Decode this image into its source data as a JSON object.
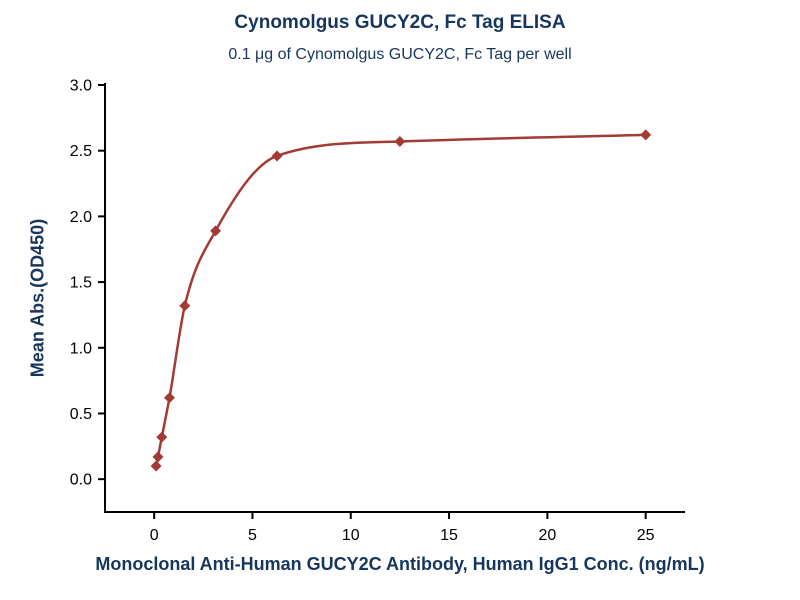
{
  "chart_data": {
    "type": "scatter",
    "title": "Cynomolgus GUCY2C, Fc Tag ELISA",
    "subtitle": "0.1 μg of Cynomolgus GUCY2C, Fc Tag per well",
    "xlabel": "Monoclonal Anti-Human GUCY2C Antibody, Human IgG1 Conc. (ng/mL)",
    "ylabel": "Mean Abs.(OD450)",
    "x": [
      0.098,
      0.195,
      0.39,
      0.78,
      1.56,
      3.125,
      6.25,
      12.5,
      25
    ],
    "y": [
      0.1,
      0.17,
      0.32,
      0.62,
      1.32,
      1.89,
      2.46,
      2.57,
      2.62
    ],
    "xlim": [
      -2.5,
      27
    ],
    "ylim": [
      -0.25,
      3.0
    ],
    "xticks": [
      0,
      5,
      10,
      15,
      20,
      25
    ],
    "yticks": [
      0.0,
      0.5,
      1.0,
      1.5,
      2.0,
      2.5,
      3.0
    ],
    "grid": false,
    "legend": "none",
    "marker": "diamond",
    "curve": "4PL-fit",
    "colors": {
      "series": "#A33B35",
      "title": "#17365D",
      "axis_label": "#17365D",
      "tick_label": "#000000",
      "axis_line": "#000000",
      "background": "#FFFFFF"
    }
  }
}
